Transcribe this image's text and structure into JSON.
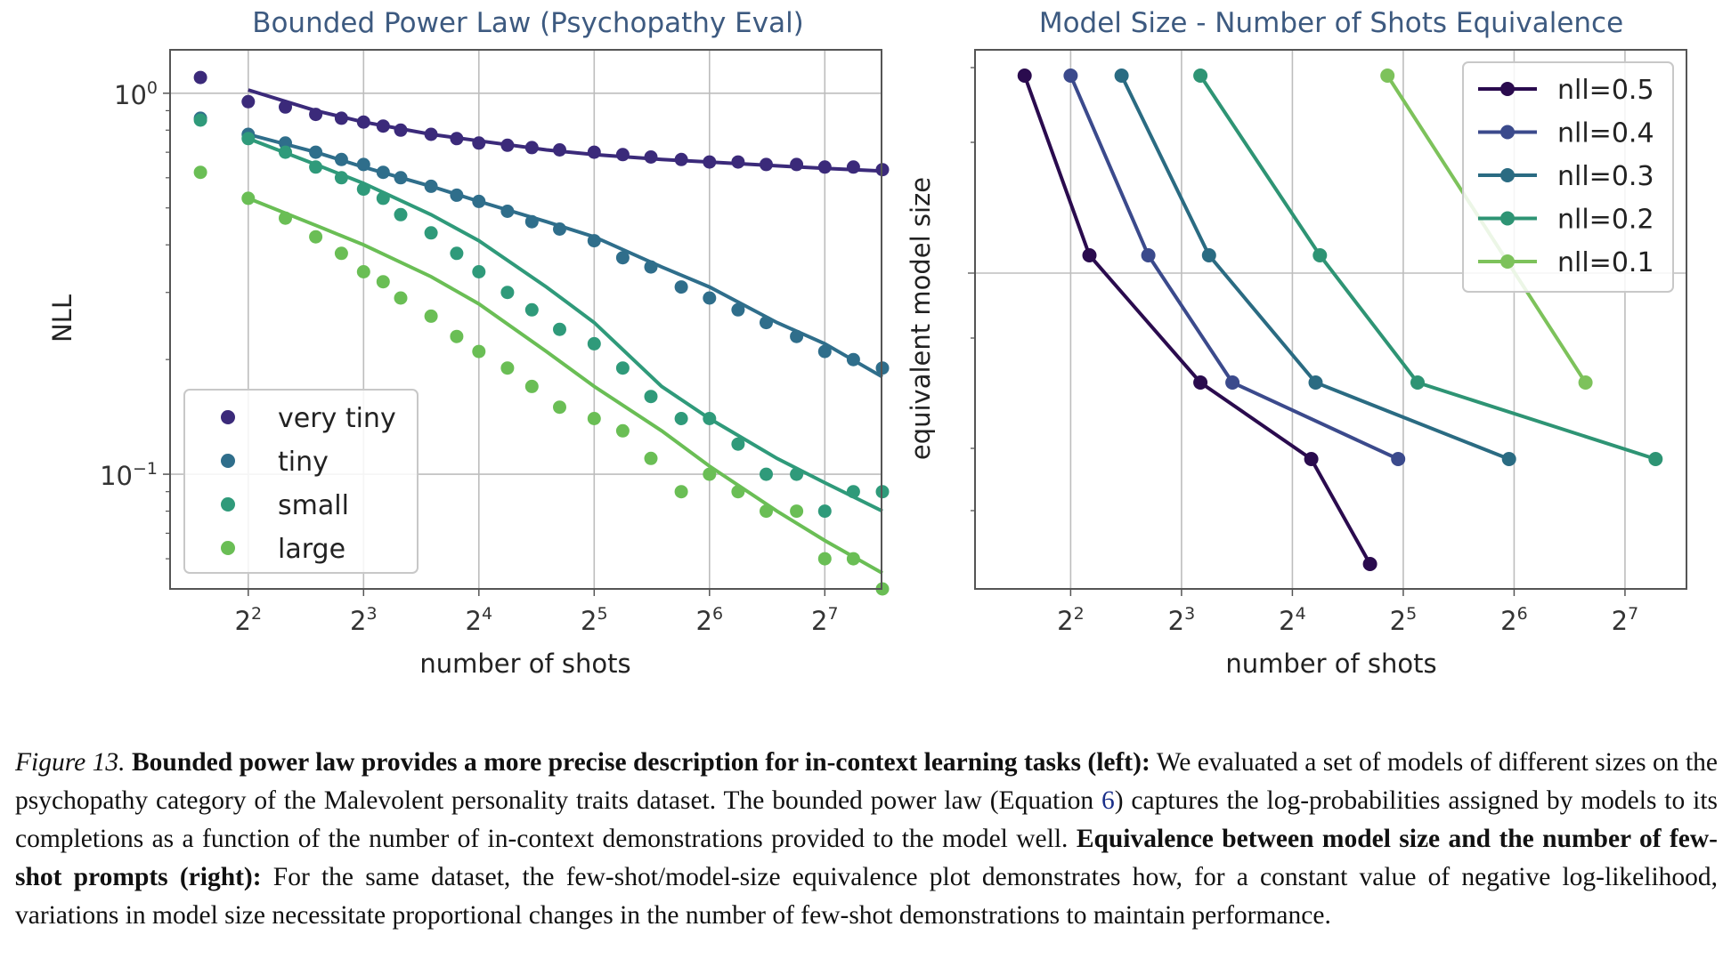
{
  "chart_data": [
    {
      "type": "scatter",
      "title": "Bounded Power Law (Psychopathy Eval)",
      "xlabel": "number of shots",
      "ylabel": "NLL",
      "x_scale": "log2",
      "y_scale": "log10",
      "xlim": [
        2.5,
        180
      ],
      "ylim": [
        0.05,
        1.3
      ],
      "x_ticks": [
        {
          "base": "2",
          "exp": "2",
          "value": 4
        },
        {
          "base": "2",
          "exp": "3",
          "value": 8
        },
        {
          "base": "2",
          "exp": "4",
          "value": 16
        },
        {
          "base": "2",
          "exp": "5",
          "value": 32
        },
        {
          "base": "2",
          "exp": "6",
          "value": 64
        },
        {
          "base": "2",
          "exp": "7",
          "value": 128
        }
      ],
      "y_ticks": [
        {
          "base": "10",
          "exp": "0",
          "value": 1.0
        },
        {
          "base": "10",
          "exp": "−1",
          "value": 0.1
        }
      ],
      "grid": true,
      "legend_position": "lower-left",
      "series": [
        {
          "name": "very tiny",
          "color": "#3b2a7a",
          "x": [
            3,
            4,
            5,
            6,
            7,
            8,
            9,
            10,
            12,
            14,
            16,
            19,
            22,
            26,
            32,
            38,
            45,
            54,
            64,
            76,
            90,
            108,
            128,
            152,
            181
          ],
          "y": [
            1.1,
            0.95,
            0.92,
            0.88,
            0.86,
            0.84,
            0.82,
            0.8,
            0.78,
            0.76,
            0.74,
            0.73,
            0.72,
            0.71,
            0.7,
            0.69,
            0.68,
            0.67,
            0.66,
            0.66,
            0.65,
            0.65,
            0.64,
            0.64,
            0.63
          ],
          "fit_x": [
            4,
            6,
            8,
            12,
            16,
            24,
            32,
            48,
            64,
            96,
            128,
            181
          ],
          "fit_y": [
            1.02,
            0.9,
            0.84,
            0.78,
            0.75,
            0.71,
            0.69,
            0.67,
            0.66,
            0.645,
            0.635,
            0.625
          ]
        },
        {
          "name": "tiny",
          "color": "#2f6e8b",
          "x": [
            3,
            4,
            5,
            6,
            7,
            8,
            9,
            10,
            12,
            14,
            16,
            19,
            22,
            26,
            32,
            38,
            45,
            54,
            64,
            76,
            90,
            108,
            128,
            152,
            181
          ],
          "y": [
            0.86,
            0.78,
            0.74,
            0.7,
            0.67,
            0.65,
            0.62,
            0.6,
            0.57,
            0.54,
            0.52,
            0.49,
            0.46,
            0.44,
            0.41,
            0.37,
            0.35,
            0.31,
            0.29,
            0.27,
            0.25,
            0.23,
            0.21,
            0.2,
            0.19
          ],
          "fit_x": [
            4,
            6,
            8,
            12,
            16,
            24,
            32,
            48,
            64,
            96,
            128,
            181
          ],
          "fit_y": [
            0.78,
            0.7,
            0.64,
            0.57,
            0.52,
            0.46,
            0.42,
            0.35,
            0.31,
            0.25,
            0.22,
            0.18
          ]
        },
        {
          "name": "small",
          "color": "#2f9a7a",
          "x": [
            3,
            4,
            5,
            6,
            7,
            8,
            9,
            10,
            12,
            14,
            16,
            19,
            22,
            26,
            32,
            38,
            45,
            54,
            64,
            76,
            90,
            108,
            128,
            152,
            181
          ],
          "y": [
            0.85,
            0.76,
            0.7,
            0.64,
            0.6,
            0.56,
            0.53,
            0.48,
            0.43,
            0.38,
            0.34,
            0.3,
            0.27,
            0.24,
            0.22,
            0.19,
            0.16,
            0.14,
            0.14,
            0.12,
            0.1,
            0.1,
            0.08,
            0.09,
            0.09
          ],
          "fit_x": [
            4,
            6,
            8,
            12,
            16,
            24,
            32,
            48,
            64,
            96,
            128,
            181
          ],
          "fit_y": [
            0.76,
            0.65,
            0.58,
            0.48,
            0.41,
            0.31,
            0.25,
            0.17,
            0.14,
            0.11,
            0.095,
            0.08
          ]
        },
        {
          "name": "large",
          "color": "#6abe55",
          "x": [
            3,
            4,
            5,
            6,
            7,
            8,
            9,
            10,
            12,
            14,
            16,
            19,
            22,
            26,
            32,
            38,
            45,
            54,
            64,
            76,
            90,
            108,
            128,
            152,
            181
          ],
          "y": [
            0.62,
            0.53,
            0.47,
            0.42,
            0.38,
            0.34,
            0.32,
            0.29,
            0.26,
            0.23,
            0.21,
            0.19,
            0.17,
            0.15,
            0.14,
            0.13,
            0.11,
            0.09,
            0.1,
            0.09,
            0.08,
            0.08,
            0.06,
            0.06,
            0.05
          ],
          "fit_x": [
            4,
            6,
            8,
            12,
            16,
            24,
            32,
            48,
            64,
            96,
            128,
            181
          ],
          "fit_y": [
            0.53,
            0.45,
            0.4,
            0.33,
            0.28,
            0.21,
            0.17,
            0.13,
            0.105,
            0.08,
            0.067,
            0.055
          ]
        }
      ]
    },
    {
      "type": "line",
      "title": "Model Size - Number of Shots Equivalence",
      "xlabel": "number of shots",
      "ylabel": "equivalent model size",
      "x_scale": "log2",
      "xlim": [
        2.2,
        188
      ],
      "x_ticks": [
        {
          "base": "2",
          "exp": "2",
          "value": 4
        },
        {
          "base": "2",
          "exp": "3",
          "value": 8
        },
        {
          "base": "2",
          "exp": "4",
          "value": 16
        },
        {
          "base": "2",
          "exp": "5",
          "value": 32
        },
        {
          "base": "2",
          "exp": "6",
          "value": 64
        },
        {
          "base": "2",
          "exp": "7",
          "value": 128
        }
      ],
      "y_ticks_unlabeled": 6,
      "grid": true,
      "legend_position": "top-right",
      "series": [
        {
          "name": "nll=0.5",
          "color": "#2a0b4e",
          "x": [
            3,
            4.5,
            9,
            18,
            26
          ],
          "y_rank": [
            4,
            3,
            2,
            1,
            0
          ]
        },
        {
          "name": "nll=0.4",
          "color": "#3b4a8c",
          "x": [
            4,
            6.5,
            11,
            31
          ],
          "y_rank": [
            4,
            3,
            2,
            1
          ]
        },
        {
          "name": "nll=0.3",
          "color": "#2a6b82",
          "x": [
            5.5,
            9.5,
            18.5,
            62
          ],
          "y_rank": [
            4,
            3,
            2,
            1
          ]
        },
        {
          "name": "nll=0.2",
          "color": "#2e9474",
          "x": [
            9,
            19,
            35,
            155
          ],
          "y_rank": [
            4,
            3,
            2,
            1
          ]
        },
        {
          "name": "nll=0.1",
          "color": "#7dc25b",
          "x": [
            29,
            100
          ],
          "y_rank": [
            4,
            2
          ]
        }
      ]
    }
  ],
  "caption": {
    "figure_label": "Figure 13.",
    "bold_1": "Bounded power law provides a more precise description for in-context learning tasks (left):",
    "text_1": "We evaluated a set of models of different sizes on the psychopathy category of the Malevolent personality traits dataset. The bounded power law (Equation",
    "ref": "6",
    "text_2": ") captures the log-probabilities assigned by models to its completions as a function of the number of in-context demonstrations provided to the model well.",
    "bold_2": "Equivalence between model size and the number of few-shot prompts (right):",
    "text_3": "For the same dataset, the few-shot/model-size equivalence plot demonstrates how, for a constant value of negative log-likelihood, variations in model size necessitate proportional changes in the number of few-shot demonstrations to maintain performance."
  }
}
